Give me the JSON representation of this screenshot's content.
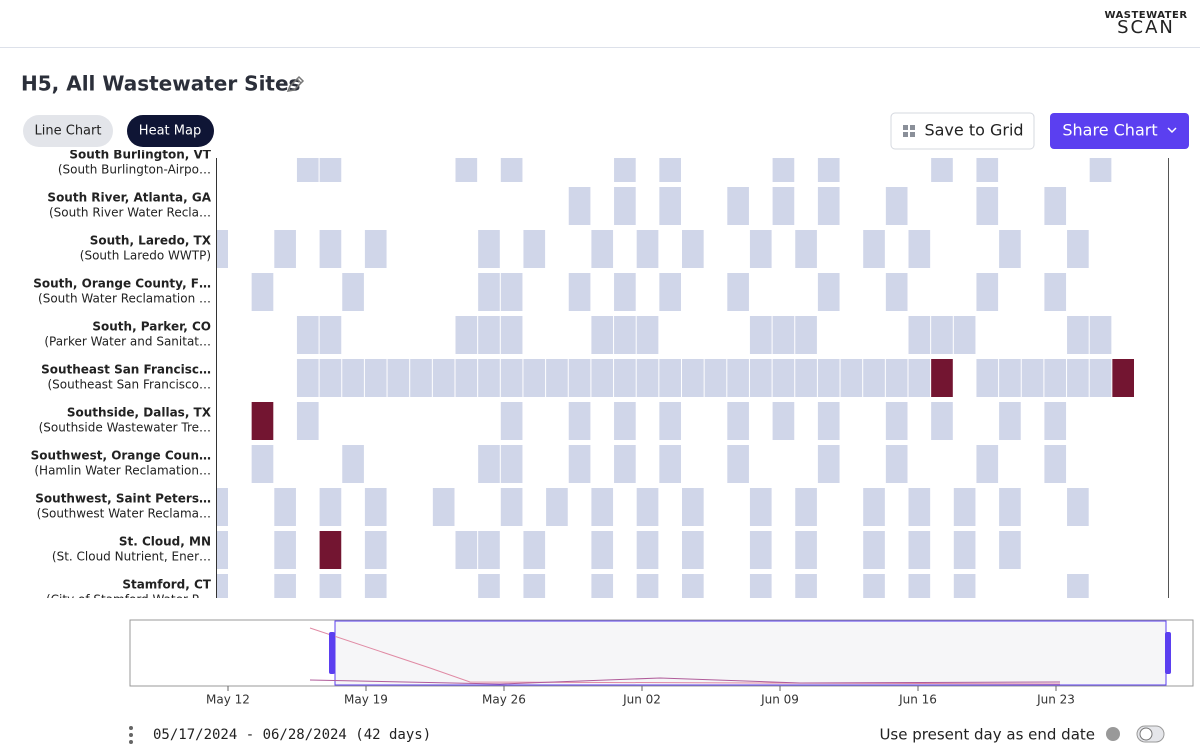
{
  "header": {
    "logo_top": "WASTEWATER",
    "logo_bottom": "SCAN"
  },
  "title": "H5, All Wastewater Sites",
  "tabs": [
    "Line Chart",
    "Heat Map"
  ],
  "buttons": {
    "save": "Save to Grid",
    "share": "Share Chart"
  },
  "heatmap": {
    "colors": [
      "#d0d6e9",
      "#731531"
    ],
    "rows": [
      {
        "name": "South Burlington, VT",
        "site": "(South Burlington-Airpo…",
        "cells": [
          0,
          0,
          0,
          0,
          1,
          1,
          0,
          0,
          0,
          0,
          0,
          1,
          0,
          1,
          0,
          0,
          0,
          0,
          1,
          0,
          1,
          0,
          0,
          0,
          0,
          1,
          0,
          1,
          0,
          0,
          0,
          0,
          1,
          0,
          1,
          0,
          0,
          0,
          0,
          1,
          0,
          0,
          0
        ]
      },
      {
        "name": "South River, Atlanta, GA",
        "site": "(South River Water Recla…",
        "cells": [
          0,
          0,
          0,
          0,
          0,
          0,
          0,
          0,
          0,
          0,
          0,
          0,
          0,
          0,
          0,
          0,
          1,
          0,
          1,
          0,
          1,
          0,
          0,
          1,
          0,
          1,
          0,
          1,
          0,
          0,
          1,
          0,
          0,
          0,
          1,
          0,
          0,
          1,
          0,
          0,
          0,
          0,
          0
        ]
      },
      {
        "name": "South, Laredo, TX",
        "site": "(South Laredo WWTP)",
        "cells": [
          1,
          0,
          0,
          1,
          0,
          1,
          0,
          1,
          0,
          0,
          0,
          0,
          1,
          0,
          1,
          0,
          0,
          1,
          0,
          1,
          0,
          1,
          0,
          0,
          1,
          0,
          1,
          0,
          0,
          1,
          0,
          1,
          0,
          0,
          0,
          1,
          0,
          0,
          1,
          0,
          0,
          0,
          0
        ]
      },
      {
        "name": "South, Orange County, F…",
        "site": "(South Water Reclamation …",
        "cells": [
          0,
          0,
          1,
          0,
          0,
          0,
          1,
          0,
          0,
          0,
          0,
          0,
          1,
          1,
          0,
          0,
          1,
          0,
          1,
          0,
          1,
          0,
          0,
          1,
          0,
          0,
          0,
          1,
          0,
          0,
          1,
          0,
          0,
          0,
          1,
          0,
          0,
          1,
          0,
          0,
          0,
          0,
          0
        ]
      },
      {
        "name": "South, Parker, CO",
        "site": "(Parker Water and Sanitat…",
        "cells": [
          0,
          0,
          0,
          0,
          1,
          1,
          0,
          0,
          0,
          0,
          0,
          1,
          1,
          1,
          0,
          0,
          0,
          1,
          1,
          1,
          0,
          0,
          0,
          0,
          1,
          1,
          1,
          0,
          0,
          0,
          0,
          1,
          1,
          1,
          0,
          0,
          0,
          0,
          1,
          1,
          0,
          0,
          0
        ]
      },
      {
        "name": "Southeast San Francisc…",
        "site": "(Southeast San Francisco…",
        "cells": [
          0,
          0,
          0,
          0,
          1,
          1,
          1,
          1,
          1,
          1,
          1,
          1,
          1,
          1,
          1,
          1,
          1,
          1,
          1,
          1,
          1,
          1,
          1,
          1,
          1,
          1,
          1,
          1,
          1,
          1,
          1,
          1,
          2,
          0,
          1,
          1,
          1,
          1,
          1,
          1,
          2,
          0,
          0
        ]
      },
      {
        "name": "Southside, Dallas, TX",
        "site": "(Southside Wastewater Tre…",
        "cells": [
          0,
          0,
          2,
          0,
          1,
          0,
          0,
          0,
          0,
          0,
          0,
          0,
          0,
          1,
          0,
          0,
          1,
          0,
          1,
          0,
          1,
          0,
          0,
          1,
          0,
          1,
          0,
          1,
          0,
          0,
          1,
          0,
          1,
          0,
          0,
          1,
          0,
          1,
          0,
          0,
          0,
          0,
          0
        ]
      },
      {
        "name": "Southwest, Orange Coun…",
        "site": "(Hamlin Water Reclamation…",
        "cells": [
          0,
          0,
          1,
          0,
          0,
          0,
          1,
          0,
          0,
          0,
          0,
          0,
          1,
          1,
          0,
          0,
          1,
          0,
          1,
          0,
          1,
          0,
          0,
          1,
          0,
          0,
          0,
          1,
          0,
          0,
          1,
          0,
          0,
          0,
          1,
          0,
          0,
          1,
          0,
          0,
          0,
          0,
          0
        ]
      },
      {
        "name": "Southwest, Saint Peters…",
        "site": "(Southwest Water Reclama…",
        "cells": [
          1,
          0,
          0,
          1,
          0,
          1,
          0,
          1,
          0,
          0,
          1,
          0,
          0,
          1,
          0,
          1,
          0,
          1,
          0,
          1,
          0,
          1,
          0,
          0,
          1,
          0,
          1,
          0,
          0,
          1,
          0,
          1,
          0,
          1,
          0,
          1,
          0,
          0,
          1,
          0,
          0,
          0,
          0
        ]
      },
      {
        "name": "St. Cloud, MN",
        "site": "(St. Cloud Nutrient, Ener…",
        "cells": [
          1,
          0,
          0,
          1,
          0,
          2,
          0,
          1,
          0,
          0,
          0,
          1,
          1,
          0,
          1,
          0,
          0,
          1,
          0,
          1,
          0,
          1,
          0,
          0,
          1,
          0,
          1,
          0,
          0,
          1,
          0,
          1,
          0,
          1,
          0,
          1,
          0,
          0,
          0,
          0,
          0,
          0,
          0
        ]
      },
      {
        "name": "Stamford, CT",
        "site": "(City of Stamford Water P…",
        "cells": [
          1,
          0,
          0,
          1,
          0,
          1,
          0,
          1,
          0,
          0,
          0,
          0,
          1,
          0,
          1,
          0,
          0,
          1,
          0,
          1,
          0,
          1,
          0,
          0,
          1,
          0,
          1,
          0,
          0,
          1,
          0,
          1,
          0,
          1,
          0,
          0,
          0,
          0,
          1,
          0,
          0,
          0,
          0
        ]
      }
    ]
  },
  "brush": {
    "ticks": [
      "May 12",
      "May 19",
      "May 26",
      "Jun 02",
      "Jun 09",
      "Jun 16",
      "Jun 23"
    ]
  },
  "footer": {
    "range": "05/17/2024 - 06/28/2024 (42 days)",
    "toggle_label": "Use present day as end date"
  }
}
